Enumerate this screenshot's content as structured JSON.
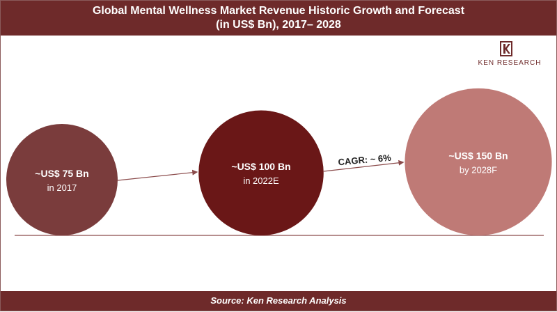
{
  "header": {
    "title_line1": "Global Mental Wellness  Market Revenue Historic Growth and Forecast",
    "title_line2": "(in US$ Bn), 2017– 2028"
  },
  "logo": {
    "text": "KEN RESEARCH"
  },
  "footer": {
    "source": "Source: Ken Research Analysis"
  },
  "colors": {
    "header_bg": "#6e2a2a",
    "bubble_2017": "#7a3c3c",
    "bubble_2022": "#6a1717",
    "bubble_2028": "#bf7a76",
    "arrow": "#8a4a4a",
    "baseline": "#8a4a4a"
  },
  "chart_data": {
    "type": "bubble",
    "unit": "US$ Bn",
    "points": [
      {
        "year": "2017",
        "value": 75,
        "value_label": "~US$ 75 Bn",
        "period_label": "in 2017"
      },
      {
        "year": "2022E",
        "value": 100,
        "value_label": "~US$ 100 Bn",
        "period_label": "in 2022E"
      },
      {
        "year": "2028F",
        "value": 150,
        "value_label": "~US$ 150 Bn",
        "period_label": "by 2028F"
      }
    ],
    "annotations": [
      {
        "text": "CAGR: ~ 6%",
        "between": [
          "2022E",
          "2028F"
        ]
      }
    ]
  }
}
